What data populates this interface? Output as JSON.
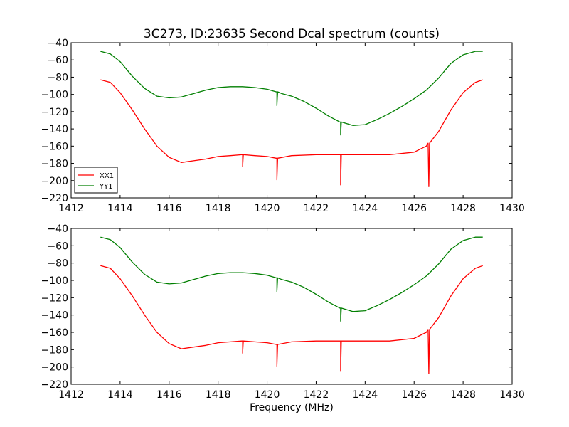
{
  "figure": {
    "title": "3C273, ID:23635 Second Dcal spectrum (counts)",
    "xlabel": "Frequency (MHz)"
  },
  "chart_data": [
    {
      "type": "line",
      "title": "3C273, ID:23635 Second Dcal spectrum (counts)",
      "xlabel": "",
      "ylabel": "",
      "xlim": [
        1412,
        1430
      ],
      "ylim": [
        -220,
        -40
      ],
      "xticks": [
        1412,
        1414,
        1416,
        1418,
        1420,
        1422,
        1424,
        1426,
        1428,
        1430
      ],
      "yticks": [
        -40,
        -60,
        -80,
        -100,
        -120,
        -140,
        -160,
        -180,
        -200,
        -220
      ],
      "grid": false,
      "legend": "bottom-left",
      "series": [
        {
          "name": "XX1",
          "color": "#ff0000",
          "x": [
            1413.2,
            1413.6,
            1414.0,
            1414.5,
            1415.0,
            1415.5,
            1416.0,
            1416.5,
            1417.0,
            1417.5,
            1418.0,
            1418.5,
            1419.0,
            1419.5,
            1420.0,
            1420.4,
            1421.0,
            1422.0,
            1423.0,
            1424.0,
            1425.0,
            1426.0,
            1426.5,
            1427.0,
            1427.5,
            1428.0,
            1428.5,
            1428.8
          ],
          "values": [
            -83,
            -86,
            -98,
            -118,
            -140,
            -160,
            -173,
            -179,
            -177,
            -175,
            -172,
            -171,
            -170,
            -171,
            -172,
            -174,
            -171,
            -170,
            -170,
            -170,
            -170,
            -167,
            -160,
            -143,
            -118,
            -98,
            -86,
            -83
          ],
          "spikes": [
            {
              "x": 1419.0,
              "value": -184
            },
            {
              "x": 1420.4,
              "value": -199
            },
            {
              "x": 1423.0,
              "value": -205
            },
            {
              "x": 1426.6,
              "value": -207
            }
          ]
        },
        {
          "name": "YY1",
          "color": "#007f00",
          "x": [
            1413.2,
            1413.6,
            1414.0,
            1414.5,
            1415.0,
            1415.5,
            1416.0,
            1416.5,
            1417.0,
            1417.5,
            1418.0,
            1418.5,
            1419.0,
            1419.5,
            1420.0,
            1420.4,
            1420.6,
            1421.0,
            1421.5,
            1422.0,
            1422.5,
            1423.0,
            1423.5,
            1424.0,
            1424.5,
            1425.0,
            1425.5,
            1426.0,
            1426.5,
            1427.0,
            1427.5,
            1428.0,
            1428.5,
            1428.8
          ],
          "values": [
            -50,
            -53,
            -62,
            -79,
            -93,
            -102,
            -104,
            -103,
            -99,
            -95,
            -92,
            -91,
            -91,
            -92,
            -94,
            -97,
            -99,
            -102,
            -108,
            -116,
            -125,
            -132,
            -136,
            -135,
            -129,
            -122,
            -114,
            -105,
            -95,
            -81,
            -64,
            -54,
            -50,
            -50
          ],
          "spikes": [
            {
              "x": 1420.4,
              "value": -113
            },
            {
              "x": 1423.0,
              "value": -147
            }
          ]
        }
      ]
    },
    {
      "type": "line",
      "title": "",
      "xlabel": "Frequency (MHz)",
      "ylabel": "",
      "xlim": [
        1412,
        1430
      ],
      "ylim": [
        -220,
        -40
      ],
      "xticks": [
        1412,
        1414,
        1416,
        1418,
        1420,
        1422,
        1424,
        1426,
        1428,
        1430
      ],
      "yticks": [
        -40,
        -60,
        -80,
        -100,
        -120,
        -140,
        -160,
        -180,
        -200,
        -220
      ],
      "grid": false,
      "legend": "none",
      "series": [
        {
          "color": "#ff0000",
          "x": [
            1413.2,
            1413.6,
            1414.0,
            1414.5,
            1415.0,
            1415.5,
            1416.0,
            1416.5,
            1417.0,
            1417.5,
            1418.0,
            1418.5,
            1419.0,
            1419.5,
            1420.0,
            1420.4,
            1421.0,
            1422.0,
            1423.0,
            1424.0,
            1425.0,
            1426.0,
            1426.5,
            1427.0,
            1427.5,
            1428.0,
            1428.5,
            1428.8
          ],
          "values": [
            -83,
            -86,
            -98,
            -118,
            -140,
            -160,
            -173,
            -179,
            -177,
            -175,
            -172,
            -171,
            -170,
            -171,
            -172,
            -174,
            -171,
            -170,
            -170,
            -170,
            -170,
            -167,
            -160,
            -143,
            -118,
            -98,
            -86,
            -83
          ],
          "spikes": [
            {
              "x": 1419.0,
              "value": -184
            },
            {
              "x": 1420.4,
              "value": -199
            },
            {
              "x": 1423.0,
              "value": -205
            },
            {
              "x": 1426.6,
              "value": -208
            }
          ]
        },
        {
          "color": "#007f00",
          "x": [
            1413.2,
            1413.6,
            1414.0,
            1414.5,
            1415.0,
            1415.5,
            1416.0,
            1416.5,
            1417.0,
            1417.5,
            1418.0,
            1418.5,
            1419.0,
            1419.5,
            1420.0,
            1420.4,
            1420.6,
            1421.0,
            1421.5,
            1422.0,
            1422.5,
            1423.0,
            1423.5,
            1424.0,
            1424.5,
            1425.0,
            1425.5,
            1426.0,
            1426.5,
            1427.0,
            1427.5,
            1428.0,
            1428.5,
            1428.8
          ],
          "values": [
            -50,
            -53,
            -62,
            -79,
            -93,
            -102,
            -104,
            -103,
            -99,
            -95,
            -92,
            -91,
            -91,
            -92,
            -94,
            -97,
            -99,
            -102,
            -108,
            -116,
            -125,
            -132,
            -136,
            -135,
            -129,
            -122,
            -114,
            -105,
            -95,
            -81,
            -64,
            -54,
            -50,
            -50
          ],
          "spikes": [
            {
              "x": 1420.4,
              "value": -113
            },
            {
              "x": 1423.0,
              "value": -147
            }
          ]
        }
      ]
    }
  ]
}
